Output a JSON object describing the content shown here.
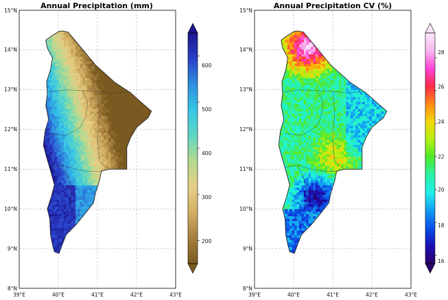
{
  "figure": {
    "panels": [
      {
        "id": "precip",
        "title": "Annual Precipitation (mm)",
        "x_ticks": [
          "39°E",
          "40°E",
          "41°E",
          "42°E",
          "43°E"
        ],
        "y_ticks": [
          "8°N",
          "9°N",
          "10°N",
          "11°N",
          "12°N",
          "13°N",
          "14°N",
          "15°N"
        ],
        "lon_range": [
          39,
          43
        ],
        "lat_range": [
          8,
          15
        ],
        "grid": true,
        "colormap": "terrain_r",
        "colorbar": {
          "range": [
            150,
            650
          ],
          "ticks": [
            "200",
            "300",
            "400",
            "500",
            "600"
          ],
          "extend": "both",
          "stops": [
            "#7a5a20",
            "#a57f3e",
            "#d2b064",
            "#e6cf86",
            "#b4d98e",
            "#5fd7c4",
            "#35c5e6",
            "#2f8fe0",
            "#2a3fc8",
            "#1c158c"
          ]
        }
      },
      {
        "id": "cv",
        "title": "Annual Precipitation CV (%)",
        "x_ticks": [
          "39°E",
          "40°E",
          "41°E",
          "42°E",
          "43°E"
        ],
        "y_ticks": [
          "8°N",
          "9°N",
          "10°N",
          "11°N",
          "12°N",
          "13°N",
          "14°N",
          "15°N"
        ],
        "lon_range": [
          39,
          43
        ],
        "lat_range": [
          8,
          15
        ],
        "grid": true,
        "colormap": "gist_ncar",
        "colorbar": {
          "range": [
            15.5,
            29.5
          ],
          "ticks": [
            "16",
            "18",
            "20",
            "22",
            "24",
            "26",
            "28"
          ],
          "extend": "both",
          "stops": [
            "#2a0066",
            "#1c0fb4",
            "#0b4fe8",
            "#139cf2",
            "#1ff0e8",
            "#2bf1a6",
            "#4fe82a",
            "#b5f014",
            "#f2d80c",
            "#ff8a15",
            "#ff2a4a",
            "#ff44d8",
            "#f7b8f0",
            "#fbe7fb"
          ]
        }
      }
    ]
  }
}
